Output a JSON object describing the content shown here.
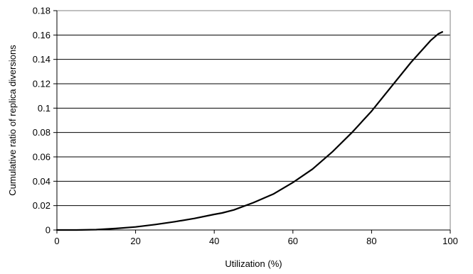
{
  "chart_data": {
    "type": "line",
    "title": "",
    "xlabel": "Utilization (%)",
    "ylabel": "Cumulative ratio of replica diversions",
    "xlim": [
      0,
      100
    ],
    "ylim": [
      0,
      0.18
    ],
    "grid": "horizontal",
    "legend": "none",
    "x_ticks": [
      {
        "value": 0,
        "label": "0"
      },
      {
        "value": 20,
        "label": "20"
      },
      {
        "value": 40,
        "label": "40"
      },
      {
        "value": 60,
        "label": "60"
      },
      {
        "value": 80,
        "label": "80"
      },
      {
        "value": 100,
        "label": "100"
      }
    ],
    "y_ticks": [
      {
        "value": 0,
        "label": "0"
      },
      {
        "value": 0.02,
        "label": "0.02"
      },
      {
        "value": 0.04,
        "label": "0.04"
      },
      {
        "value": 0.06,
        "label": "0.06"
      },
      {
        "value": 0.08,
        "label": "0.08"
      },
      {
        "value": 0.1,
        "label": "0.1"
      },
      {
        "value": 0.12,
        "label": "0.12"
      },
      {
        "value": 0.14,
        "label": "0.14"
      },
      {
        "value": 0.16,
        "label": "0.16"
      },
      {
        "value": 0.18,
        "label": "0.18"
      }
    ],
    "series": [
      {
        "color": "#000000",
        "x": [
          0,
          5,
          10,
          15,
          20,
          25,
          30,
          35,
          40,
          42,
          45,
          50,
          55,
          60,
          65,
          70,
          75,
          80,
          85,
          90,
          95,
          97,
          98
        ],
        "y": [
          0,
          0,
          0.0003,
          0.0012,
          0.0025,
          0.0045,
          0.0068,
          0.0095,
          0.0128,
          0.014,
          0.0165,
          0.0225,
          0.0295,
          0.039,
          0.05,
          0.064,
          0.08,
          0.0975,
          0.1175,
          0.1375,
          0.1555,
          0.161,
          0.1625
        ]
      }
    ]
  }
}
